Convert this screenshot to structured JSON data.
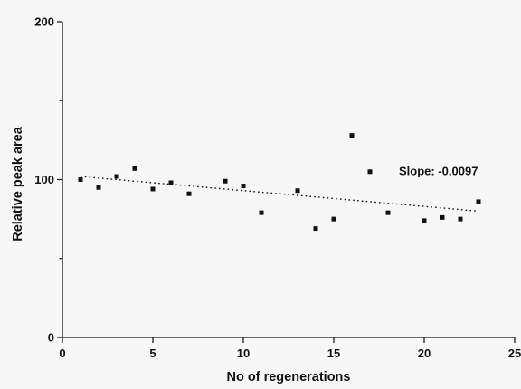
{
  "chart_data": {
    "type": "scatter",
    "title": "",
    "xlabel": "No of regenerations",
    "ylabel": "Relative peak area",
    "xlim": [
      0,
      25
    ],
    "ylim": [
      0,
      200
    ],
    "xticks": [
      0,
      5,
      10,
      15,
      20,
      25
    ],
    "yticks_major": [
      0,
      100,
      200
    ],
    "yticks_minor": [
      50,
      150
    ],
    "grid": false,
    "points": [
      {
        "x": 1,
        "y": 100
      },
      {
        "x": 2,
        "y": 95
      },
      {
        "x": 3,
        "y": 102
      },
      {
        "x": 4,
        "y": 107
      },
      {
        "x": 5,
        "y": 94
      },
      {
        "x": 6,
        "y": 98
      },
      {
        "x": 7,
        "y": 91
      },
      {
        "x": 9,
        "y": 99
      },
      {
        "x": 10,
        "y": 96
      },
      {
        "x": 11,
        "y": 79
      },
      {
        "x": 13,
        "y": 93
      },
      {
        "x": 14,
        "y": 69
      },
      {
        "x": 15,
        "y": 75
      },
      {
        "x": 16,
        "y": 128
      },
      {
        "x": 17,
        "y": 105
      },
      {
        "x": 18,
        "y": 79
      },
      {
        "x": 20,
        "y": 74
      },
      {
        "x": 21,
        "y": 76
      },
      {
        "x": 22,
        "y": 75
      },
      {
        "x": 23,
        "y": 86
      }
    ],
    "trendline": {
      "style": "dotted",
      "x": [
        1,
        23
      ],
      "y": [
        102,
        80
      ]
    },
    "annotation": {
      "text": "Slope: -0,0097",
      "x": 19,
      "y": 103
    }
  }
}
